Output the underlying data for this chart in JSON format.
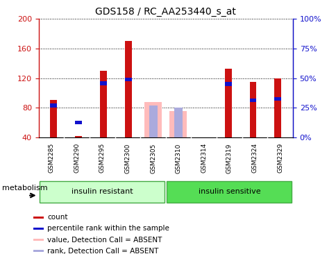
{
  "title": "GDS158 / RC_AA253440_s_at",
  "samples": [
    "GSM2285",
    "GSM2290",
    "GSM2295",
    "GSM2300",
    "GSM2305",
    "GSM2310",
    "GSM2314",
    "GSM2319",
    "GSM2324",
    "GSM2329"
  ],
  "count_values": [
    90,
    42,
    130,
    170,
    null,
    null,
    null,
    133,
    115,
    120
  ],
  "rank_values": [
    83,
    60,
    113,
    118,
    null,
    null,
    null,
    112,
    90,
    92
  ],
  "absent_count": [
    null,
    null,
    null,
    null,
    88,
    75,
    null,
    null,
    null,
    null
  ],
  "absent_rank": [
    null,
    null,
    null,
    null,
    83,
    80,
    null,
    null,
    null,
    null
  ],
  "ylim_min": 40,
  "ylim_max": 200,
  "y2lim_min": 0,
  "y2lim_max": 100,
  "yticks": [
    40,
    80,
    120,
    160,
    200
  ],
  "y2ticks": [
    0,
    25,
    50,
    75,
    100
  ],
  "red_color": "#cc1111",
  "blue_color": "#1111cc",
  "pink_color": "#ffbbbb",
  "lightblue_color": "#aaaadd",
  "group1_label": "insulin resistant",
  "group2_label": "insulin sensitive",
  "group1_color": "#ccffcc",
  "group2_color": "#55dd55",
  "metabolism_label": "metabolism",
  "legend_items": [
    {
      "color": "#cc1111",
      "label": "count"
    },
    {
      "color": "#1111cc",
      "label": "percentile rank within the sample"
    },
    {
      "color": "#ffbbbb",
      "label": "value, Detection Call = ABSENT"
    },
    {
      "color": "#aaaadd",
      "label": "rank, Detection Call = ABSENT"
    }
  ]
}
